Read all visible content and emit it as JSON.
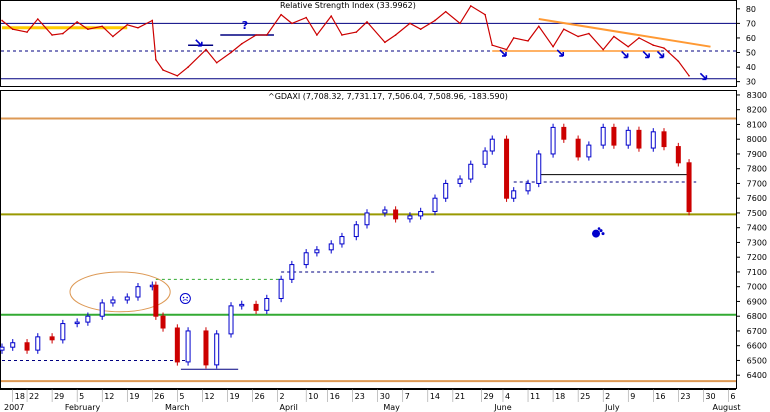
{
  "chart_data": [
    {
      "type": "line",
      "title": "Relative Strength Index (33.9962)",
      "ylim": [
        27,
        84
      ],
      "y_ticks": [
        30,
        40,
        50,
        60,
        70,
        80
      ],
      "grid": false,
      "colors": {
        "line": "#cc0000",
        "hlines": "#000080",
        "trend": "#ff9933"
      },
      "hlines": [
        {
          "y": 70,
          "style": "solid"
        },
        {
          "y": 51,
          "style": "dashed"
        },
        {
          "y": 32,
          "style": "solid"
        }
      ],
      "series": [
        {
          "x": [
            "2007-01-15",
            "2007-01-18",
            "2007-01-22",
            "2007-01-25",
            "2007-01-29",
            "2007-02-01",
            "2007-02-05",
            "2007-02-08",
            "2007-02-12",
            "2007-02-15",
            "2007-02-19",
            "2007-02-22",
            "2007-02-26",
            "2007-02-27",
            "2007-03-01",
            "2007-03-05",
            "2007-03-08",
            "2007-03-13",
            "2007-03-16",
            "2007-03-20",
            "2007-03-23",
            "2007-03-27",
            "2007-03-30",
            "2007-04-03",
            "2007-04-06",
            "2007-04-10",
            "2007-04-13",
            "2007-04-17",
            "2007-04-20",
            "2007-04-24",
            "2007-04-27",
            "2007-05-02",
            "2007-05-05",
            "2007-05-09",
            "2007-05-12",
            "2007-05-16",
            "2007-05-19",
            "2007-05-23",
            "2007-05-26",
            "2007-05-30",
            "2007-06-01",
            "2007-06-05",
            "2007-06-07",
            "2007-06-11",
            "2007-06-14",
            "2007-06-18",
            "2007-06-21",
            "2007-06-25",
            "2007-06-28",
            "2007-07-02",
            "2007-07-05",
            "2007-07-09",
            "2007-07-12",
            "2007-07-16",
            "2007-07-19",
            "2007-07-23",
            "2007-07-26"
          ],
          "values": [
            72,
            66,
            64,
            73,
            62,
            63,
            71,
            66,
            68,
            61,
            69,
            67,
            72,
            45,
            38,
            34,
            40,
            52,
            43,
            50,
            56,
            62,
            62,
            76,
            70,
            74,
            62,
            75,
            62,
            64,
            71,
            57,
            62,
            70,
            66,
            72,
            78,
            70,
            82,
            76,
            55,
            52,
            60,
            58,
            68,
            54,
            66,
            61,
            63,
            52,
            61,
            54,
            60,
            55,
            53,
            44,
            34
          ]
        }
      ],
      "annotations": [
        {
          "type": "horizontal",
          "y": 67,
          "x": [
            "2007-01-15",
            "2007-02-19"
          ],
          "color": "#ffcc00"
        },
        {
          "type": "horizontal",
          "y": 55,
          "x": [
            "2007-03-08",
            "2007-03-15"
          ],
          "color": "#000080"
        },
        {
          "type": "horizontal",
          "y": 62,
          "x": [
            "2007-03-17",
            "2007-04-01"
          ],
          "color": "#000080"
        },
        {
          "type": "trendline",
          "from": [
            "2007-06-14",
            73
          ],
          "to": [
            "2007-08-01",
            54
          ],
          "color": "#ff9933"
        },
        {
          "type": "horizontal",
          "y": 51,
          "x": [
            "2007-06-01",
            "2007-07-18"
          ],
          "color": "#ff9933"
        },
        {
          "type": "text",
          "text": "?",
          "x": "2007-03-23",
          "y": 66
        }
      ]
    },
    {
      "type": "candlestick",
      "title": "^GDAXI (7,708.32, 7,731.17, 7,506.04, 7,508.96, -183.590)",
      "ylim": [
        6320,
        8320
      ],
      "y_ticks": [
        6400,
        6500,
        6600,
        6700,
        6800,
        6900,
        7000,
        7100,
        7200,
        7300,
        7400,
        7500,
        7600,
        7700,
        7800,
        7900,
        8000,
        8100,
        8200,
        8300
      ],
      "x_ticks": [
        "18",
        "22",
        "29",
        "5",
        "12",
        "19",
        "26",
        "5",
        "12",
        "19",
        "26",
        "2",
        "10",
        "16",
        "23",
        "30",
        "7",
        "14",
        "21",
        "29",
        "4",
        "11",
        "18",
        "25",
        "2",
        "9",
        "16",
        "23",
        "30",
        "6"
      ],
      "x_tick_dates": [
        "2007-01-18",
        "2007-01-22",
        "2007-01-29",
        "2007-02-05",
        "2007-02-12",
        "2007-02-19",
        "2007-02-26",
        "2007-03-05",
        "2007-03-12",
        "2007-03-19",
        "2007-03-26",
        "2007-04-02",
        "2007-04-10",
        "2007-04-16",
        "2007-04-23",
        "2007-04-30",
        "2007-05-07",
        "2007-05-14",
        "2007-05-21",
        "2007-05-29",
        "2007-06-04",
        "2007-06-11",
        "2007-06-18",
        "2007-06-25",
        "2007-07-02",
        "2007-07-09",
        "2007-07-16",
        "2007-07-23",
        "2007-07-30",
        "2007-08-06"
      ],
      "month_labels": [
        {
          "text": "2007",
          "date": "2007-01-15"
        },
        {
          "text": "February",
          "date": "2007-02-01"
        },
        {
          "text": "March",
          "date": "2007-03-01"
        },
        {
          "text": "April",
          "date": "2007-04-02"
        },
        {
          "text": "May",
          "date": "2007-05-01"
        },
        {
          "text": "June",
          "date": "2007-06-01"
        },
        {
          "text": "July",
          "date": "2007-07-02"
        },
        {
          "text": "August",
          "date": "2007-08-01"
        }
      ],
      "candles": [
        {
          "x": "2007-01-15",
          "c": 6590
        },
        {
          "x": "2007-01-18",
          "c": 6620
        },
        {
          "x": "2007-01-22",
          "c": 6570
        },
        {
          "x": "2007-01-25",
          "c": 6660
        },
        {
          "x": "2007-01-29",
          "c": 6640
        },
        {
          "x": "2007-02-01",
          "c": 6750
        },
        {
          "x": "2007-02-05",
          "c": 6760
        },
        {
          "x": "2007-02-08",
          "c": 6800
        },
        {
          "x": "2007-02-12",
          "c": 6890
        },
        {
          "x": "2007-02-15",
          "c": 6910
        },
        {
          "x": "2007-02-19",
          "c": 6930
        },
        {
          "x": "2007-02-22",
          "c": 7000
        },
        {
          "x": "2007-02-26",
          "c": 7010
        },
        {
          "x": "2007-02-27",
          "c": 6800
        },
        {
          "x": "2007-03-01",
          "c": 6720
        },
        {
          "x": "2007-03-05",
          "c": 6490
        },
        {
          "x": "2007-03-08",
          "c": 6700
        },
        {
          "x": "2007-03-13",
          "c": 6470
        },
        {
          "x": "2007-03-16",
          "c": 6680
        },
        {
          "x": "2007-03-20",
          "c": 6870
        },
        {
          "x": "2007-03-23",
          "c": 6880
        },
        {
          "x": "2007-03-27",
          "c": 6840
        },
        {
          "x": "2007-03-30",
          "c": 6920
        },
        {
          "x": "2007-04-03",
          "c": 7050
        },
        {
          "x": "2007-04-06",
          "c": 7150
        },
        {
          "x": "2007-04-10",
          "c": 7230
        },
        {
          "x": "2007-04-13",
          "c": 7250
        },
        {
          "x": "2007-04-17",
          "c": 7290
        },
        {
          "x": "2007-04-20",
          "c": 7340
        },
        {
          "x": "2007-04-24",
          "c": 7420
        },
        {
          "x": "2007-04-27",
          "c": 7500
        },
        {
          "x": "2007-05-02",
          "c": 7520
        },
        {
          "x": "2007-05-05",
          "c": 7460
        },
        {
          "x": "2007-05-09",
          "c": 7480
        },
        {
          "x": "2007-05-12",
          "c": 7510
        },
        {
          "x": "2007-05-16",
          "c": 7600
        },
        {
          "x": "2007-05-19",
          "c": 7700
        },
        {
          "x": "2007-05-23",
          "c": 7730
        },
        {
          "x": "2007-05-26",
          "c": 7830
        },
        {
          "x": "2007-05-30",
          "c": 7920
        },
        {
          "x": "2007-06-01",
          "c": 8000
        },
        {
          "x": "2007-06-05",
          "c": 7600
        },
        {
          "x": "2007-06-07",
          "c": 7650
        },
        {
          "x": "2007-06-11",
          "c": 7700
        },
        {
          "x": "2007-06-14",
          "c": 7900
        },
        {
          "x": "2007-06-18",
          "c": 8080
        },
        {
          "x": "2007-06-21",
          "c": 8000
        },
        {
          "x": "2007-06-25",
          "c": 7880
        },
        {
          "x": "2007-06-28",
          "c": 7960
        },
        {
          "x": "2007-07-02",
          "c": 8080
        },
        {
          "x": "2007-07-05",
          "c": 7960
        },
        {
          "x": "2007-07-09",
          "c": 8060
        },
        {
          "x": "2007-07-12",
          "c": 7940
        },
        {
          "x": "2007-07-16",
          "c": 8050
        },
        {
          "x": "2007-07-19",
          "c": 7950
        },
        {
          "x": "2007-07-23",
          "c": 7840
        },
        {
          "x": "2007-07-26",
          "c": 7509
        }
      ],
      "colors": {
        "up": "#0000cc",
        "down": "#cc0000",
        "support_green": "#33aa33",
        "support_olive": "#999900",
        "resistance": "#dd9955",
        "dashed": "#000080",
        "ellipse": "#dd9955"
      },
      "hlines": [
        {
          "y": 8140,
          "color": "#dd9955",
          "style": "solid"
        },
        {
          "y": 7490,
          "color": "#999900",
          "style": "solid"
        },
        {
          "y": 6810,
          "color": "#33aa33",
          "style": "solid"
        },
        {
          "y": 6360,
          "color": "#dd9955",
          "style": "solid"
        }
      ],
      "segments": [
        {
          "y": 7760,
          "x": [
            "2007-06-14",
            "2007-07-26"
          ],
          "color": "#000000",
          "style": "solid"
        },
        {
          "y": 7710,
          "x": [
            "2007-06-07",
            "2007-07-28"
          ],
          "color": "#000080",
          "style": "dashed"
        },
        {
          "y": 7100,
          "x": [
            "2007-04-03",
            "2007-05-16"
          ],
          "color": "#000080",
          "style": "dashed"
        },
        {
          "y": 7050,
          "x": [
            "2007-02-27",
            "2007-04-03"
          ],
          "color": "#33aa33",
          "style": "dashed"
        },
        {
          "y": 6500,
          "x": [
            "2007-01-15",
            "2007-03-08"
          ],
          "color": "#000080",
          "style": "dashed"
        },
        {
          "y": 6440,
          "x": [
            "2007-03-06",
            "2007-03-22"
          ],
          "color": "#000080",
          "style": "solid"
        }
      ],
      "marks": [
        {
          "type": "ellipse",
          "x": [
            "2007-02-03",
            "2007-03-03"
          ],
          "y": [
            6830,
            7100
          ]
        },
        {
          "type": "smiley",
          "x": "2007-03-05",
          "y": 6920
        },
        {
          "type": "paw",
          "x": "2007-06-30",
          "y": 7360
        }
      ]
    }
  ]
}
